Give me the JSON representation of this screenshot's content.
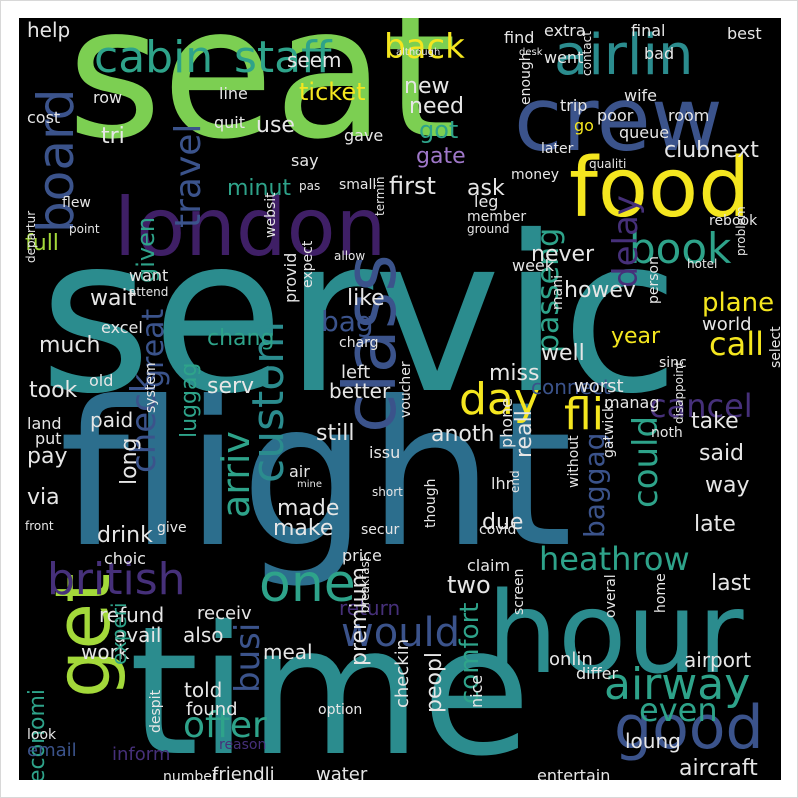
{
  "colors": {
    "yellow": "#f4e61f",
    "lime": "#a3d93a",
    "green": "#7ccf52",
    "teal": "#2ea38a",
    "cyan": "#2b8c8e",
    "blue": "#2c6e8d",
    "slate": "#3b538b",
    "purple": "#46307a",
    "violet": "#3f1f66",
    "lavender": "#9f77c9",
    "white": "#e6e6e6"
  },
  "words": [
    {
      "text": "seat",
      "color": "green"
    },
    {
      "text": "servic",
      "color": "cyan"
    },
    {
      "text": "flight",
      "color": "blue"
    },
    {
      "text": "time",
      "color": "cyan"
    },
    {
      "text": "hour",
      "color": "cyan"
    },
    {
      "text": "crew",
      "color": "slate"
    },
    {
      "text": "food",
      "color": "yellow"
    },
    {
      "text": "london",
      "color": "violet"
    },
    {
      "text": "airlin",
      "color": "cyan"
    },
    {
      "text": "cabin",
      "color": "teal"
    },
    {
      "text": "staff",
      "color": "teal"
    },
    {
      "text": "board",
      "color": "slate"
    },
    {
      "text": "class",
      "color": "slate"
    },
    {
      "text": "get",
      "color": "lime"
    },
    {
      "text": "good",
      "color": "slate"
    },
    {
      "text": "one",
      "color": "teal"
    },
    {
      "text": "british",
      "color": "purple"
    },
    {
      "text": "airway",
      "color": "teal"
    },
    {
      "text": "would",
      "color": "slate"
    },
    {
      "text": "custom",
      "color": "cyan"
    },
    {
      "text": "book",
      "color": "teal"
    },
    {
      "text": "day",
      "color": "yellow"
    },
    {
      "text": "fli",
      "color": "yellow"
    },
    {
      "text": "heathrow",
      "color": "teal"
    },
    {
      "text": "travel",
      "color": "slate"
    },
    {
      "text": "arriv",
      "color": "teal"
    },
    {
      "text": "check",
      "color": "slate"
    },
    {
      "text": "busi",
      "color": "slate"
    },
    {
      "text": "economi",
      "color": "teal"
    },
    {
      "text": "offer",
      "color": "teal"
    },
    {
      "text": "even",
      "color": "teal"
    },
    {
      "text": "call",
      "color": "yellow"
    },
    {
      "text": "delay",
      "color": "purple"
    },
    {
      "text": "passeng",
      "color": "teal"
    },
    {
      "text": "cancel",
      "color": "purple"
    },
    {
      "text": "could",
      "color": "teal"
    },
    {
      "text": "back",
      "color": "yellow"
    },
    {
      "text": "plane",
      "color": "yellow"
    },
    {
      "text": "comfort",
      "color": "teal"
    },
    {
      "text": "great",
      "color": "slate"
    },
    {
      "text": "bag",
      "color": "slate"
    },
    {
      "text": "baggag",
      "color": "slate"
    },
    {
      "text": "ticket",
      "color": "yellow"
    },
    {
      "text": "first",
      "color": "white"
    },
    {
      "text": "given",
      "color": "teal"
    },
    {
      "text": "got",
      "color": "teal"
    },
    {
      "text": "help",
      "color": "white"
    },
    {
      "text": "seem",
      "color": "white"
    },
    {
      "text": "new",
      "color": "white"
    },
    {
      "text": "need",
      "color": "white"
    },
    {
      "text": "tri",
      "color": "white"
    },
    {
      "text": "use",
      "color": "white"
    },
    {
      "text": "gate",
      "color": "lavender"
    },
    {
      "text": "clubnext",
      "color": "white"
    },
    {
      "text": "minut",
      "color": "teal"
    },
    {
      "text": "ask",
      "color": "white"
    },
    {
      "text": "full",
      "color": "lime"
    },
    {
      "text": "never",
      "color": "white"
    },
    {
      "text": "take",
      "color": "white"
    },
    {
      "text": "wait",
      "color": "white"
    },
    {
      "text": "like",
      "color": "white"
    },
    {
      "text": "howev",
      "color": "white"
    },
    {
      "text": "much",
      "color": "white"
    },
    {
      "text": "chang",
      "color": "teal"
    },
    {
      "text": "year",
      "color": "yellow"
    },
    {
      "text": "well",
      "color": "white"
    },
    {
      "text": "miss",
      "color": "white"
    },
    {
      "text": "took",
      "color": "white"
    },
    {
      "text": "serv",
      "color": "white"
    },
    {
      "text": "left",
      "color": "white"
    },
    {
      "text": "better",
      "color": "white"
    },
    {
      "text": "connect",
      "color": "slate"
    },
    {
      "text": "paid",
      "color": "white"
    },
    {
      "text": "still",
      "color": "white"
    },
    {
      "text": "anoth",
      "color": "white"
    },
    {
      "text": "said",
      "color": "white"
    },
    {
      "text": "pay",
      "color": "white"
    },
    {
      "text": "luggag",
      "color": "teal"
    },
    {
      "text": "long",
      "color": "white"
    },
    {
      "text": "way",
      "color": "white"
    },
    {
      "text": "via",
      "color": "white"
    },
    {
      "text": "made",
      "color": "white"
    },
    {
      "text": "make",
      "color": "white"
    },
    {
      "text": "drink",
      "color": "white"
    },
    {
      "text": "late",
      "color": "white"
    },
    {
      "text": "due",
      "color": "white"
    },
    {
      "text": "reall",
      "color": "white"
    },
    {
      "text": "two",
      "color": "white"
    },
    {
      "text": "last",
      "color": "white"
    },
    {
      "text": "refund",
      "color": "white"
    },
    {
      "text": "receiv",
      "color": "white"
    },
    {
      "text": "return",
      "color": "purple"
    },
    {
      "text": "avail",
      "color": "white"
    },
    {
      "text": "also",
      "color": "white"
    },
    {
      "text": "work",
      "color": "white"
    },
    {
      "text": "meal",
      "color": "white"
    },
    {
      "text": "told",
      "color": "white"
    },
    {
      "text": "premium",
      "color": "white"
    },
    {
      "text": "airport",
      "color": "white"
    },
    {
      "text": "experi",
      "color": "teal"
    },
    {
      "text": "found",
      "color": "white"
    },
    {
      "text": "loung",
      "color": "white"
    },
    {
      "text": "email",
      "color": "slate"
    },
    {
      "text": "inform",
      "color": "purple"
    },
    {
      "text": "friendli",
      "color": "white"
    },
    {
      "text": "water",
      "color": "white"
    },
    {
      "text": "peopl",
      "color": "white"
    },
    {
      "text": "checkin",
      "color": "white"
    },
    {
      "text": "onlin",
      "color": "white"
    },
    {
      "text": "aircraft",
      "color": "white"
    },
    {
      "text": "entertain",
      "color": "white"
    },
    {
      "text": "number",
      "color": "white"
    },
    {
      "text": "nice",
      "color": "white"
    },
    {
      "text": "option",
      "color": "white"
    },
    {
      "text": "reason",
      "color": "purple"
    },
    {
      "text": "despit",
      "color": "white"
    },
    {
      "text": "look",
      "color": "white"
    },
    {
      "text": "choic",
      "color": "white"
    },
    {
      "text": "give",
      "color": "white"
    },
    {
      "text": "front",
      "color": "white"
    },
    {
      "text": "land",
      "color": "white"
    },
    {
      "text": "put",
      "color": "white"
    },
    {
      "text": "old",
      "color": "white"
    },
    {
      "text": "system",
      "color": "white"
    },
    {
      "text": "air",
      "color": "white"
    },
    {
      "text": "mine",
      "color": "white"
    },
    {
      "text": "secur",
      "color": "white"
    },
    {
      "text": "issu",
      "color": "white"
    },
    {
      "text": "voucher",
      "color": "white"
    },
    {
      "text": "phone",
      "color": "white"
    },
    {
      "text": "end",
      "color": "white"
    },
    {
      "text": "lhr",
      "color": "white"
    },
    {
      "text": "price",
      "color": "white"
    },
    {
      "text": "short",
      "color": "white"
    },
    {
      "text": "without",
      "color": "white"
    },
    {
      "text": "gatwick",
      "color": "white"
    },
    {
      "text": "claim",
      "color": "white"
    },
    {
      "text": "covid",
      "color": "white"
    },
    {
      "text": "though",
      "color": "white"
    },
    {
      "text": "breakfast",
      "color": "white"
    },
    {
      "text": "screen",
      "color": "white"
    },
    {
      "text": "differ",
      "color": "white"
    },
    {
      "text": "overal",
      "color": "white"
    },
    {
      "text": "home",
      "color": "white"
    },
    {
      "text": "noth",
      "color": "white"
    },
    {
      "text": "disappoint",
      "color": "white"
    },
    {
      "text": "select",
      "color": "white"
    },
    {
      "text": "worst",
      "color": "white"
    },
    {
      "text": "manag",
      "color": "white"
    },
    {
      "text": "sinc",
      "color": "white"
    },
    {
      "text": "world",
      "color": "white"
    },
    {
      "text": "person",
      "color": "white"
    },
    {
      "text": "problem",
      "color": "white"
    },
    {
      "text": "hotel",
      "color": "white"
    },
    {
      "text": "mani",
      "color": "white"
    },
    {
      "text": "charg",
      "color": "white"
    },
    {
      "text": "provid",
      "color": "white"
    },
    {
      "text": "excel",
      "color": "white"
    },
    {
      "text": "expect",
      "color": "white"
    },
    {
      "text": "websit",
      "color": "white"
    },
    {
      "text": "want",
      "color": "white"
    },
    {
      "text": "attend",
      "color": "white"
    },
    {
      "text": "departur",
      "color": "white"
    },
    {
      "text": "allow",
      "color": "white"
    },
    {
      "text": "termin",
      "color": "white"
    },
    {
      "text": "member",
      "color": "white"
    },
    {
      "text": "ground",
      "color": "white"
    },
    {
      "text": "week",
      "color": "white"
    },
    {
      "text": "rebook",
      "color": "white"
    },
    {
      "text": "small",
      "color": "white"
    },
    {
      "text": "pas",
      "color": "white"
    },
    {
      "text": "leg",
      "color": "white"
    },
    {
      "text": "money",
      "color": "white"
    },
    {
      "text": "say",
      "color": "white"
    },
    {
      "text": "gave",
      "color": "white"
    },
    {
      "text": "quit",
      "color": "white"
    },
    {
      "text": "cost",
      "color": "white"
    },
    {
      "text": "row",
      "color": "white"
    },
    {
      "text": "line",
      "color": "white"
    },
    {
      "text": "went",
      "color": "white"
    },
    {
      "text": "although",
      "color": "white"
    },
    {
      "text": "find",
      "color": "white"
    },
    {
      "text": "desk",
      "color": "white"
    },
    {
      "text": "extra",
      "color": "white"
    },
    {
      "text": "contact",
      "color": "white"
    },
    {
      "text": "final",
      "color": "white"
    },
    {
      "text": "bad",
      "color": "white"
    },
    {
      "text": "best",
      "color": "white"
    },
    {
      "text": "enough",
      "color": "white"
    },
    {
      "text": "trip",
      "color": "white"
    },
    {
      "text": "wife",
      "color": "white"
    },
    {
      "text": "poor",
      "color": "white"
    },
    {
      "text": "room",
      "color": "white"
    },
    {
      "text": "go",
      "color": "yellow"
    },
    {
      "text": "queue",
      "color": "white"
    },
    {
      "text": "later",
      "color": "white"
    },
    {
      "text": "qualiti",
      "color": "white"
    },
    {
      "text": "flew",
      "color": "white"
    },
    {
      "text": "point",
      "color": "white"
    }
  ]
}
